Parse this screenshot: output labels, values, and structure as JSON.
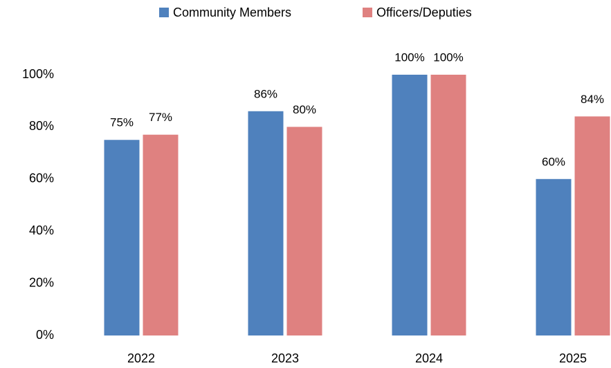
{
  "chart_data": {
    "type": "bar",
    "categories": [
      "2022",
      "2023",
      "2024",
      "2025"
    ],
    "series": [
      {
        "name": "Community Members",
        "color": "#4f81bd",
        "values": [
          75,
          86,
          100,
          60
        ],
        "value_labels": [
          "75%",
          "86%",
          "100%",
          "60%"
        ]
      },
      {
        "name": "Officers/Deputies",
        "color": "#df8180",
        "values": [
          77,
          80,
          100,
          84
        ],
        "value_labels": [
          "77%",
          "80%",
          "100%",
          "84%"
        ]
      }
    ],
    "ylim": [
      0,
      100
    ],
    "yticks": [
      {
        "value": 0,
        "label": "0%"
      },
      {
        "value": 20,
        "label": "20%"
      },
      {
        "value": 40,
        "label": "40%"
      },
      {
        "value": 60,
        "label": "60%"
      },
      {
        "value": 80,
        "label": "80%"
      },
      {
        "value": 100,
        "label": "100%"
      }
    ],
    "legend": "top",
    "grid": false
  }
}
